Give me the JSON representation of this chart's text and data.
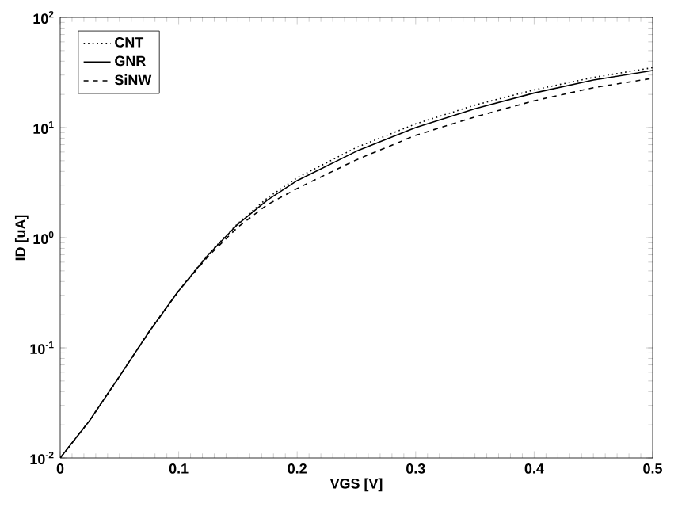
{
  "chart_data": {
    "type": "line",
    "xlabel": "VGS [V]",
    "ylabel": "ID [uA]",
    "log": "y",
    "legend": "top left",
    "grid": false,
    "xlim": [
      0,
      0.5
    ],
    "xticks": [
      0,
      0.1,
      0.2,
      0.3,
      0.4,
      0.5
    ],
    "ylim": [
      0.01,
      100
    ],
    "yticks": [
      {
        "value": 0.01,
        "label": "10$^{-2}$"
      },
      {
        "value": 0.1,
        "label": "10$^{-1}$"
      },
      {
        "value": 1,
        "label": "10$^{0}$"
      },
      {
        "value": 10,
        "label": "10$^{1}$"
      },
      {
        "value": 100,
        "label": "10$^{2}$"
      }
    ],
    "x": [
      0,
      0.025,
      0.05,
      0.075,
      0.1,
      0.125,
      0.15,
      0.175,
      0.2,
      0.25,
      0.3,
      0.35,
      0.4,
      0.45,
      0.5
    ],
    "series": [
      {
        "name": "CNT",
        "color": "#000000",
        "line_style": "dotted",
        "values": [
          0.01,
          0.022,
          0.055,
          0.14,
          0.33,
          0.71,
          1.35,
          2.3,
          3.5,
          6.6,
          10.8,
          16,
          22,
          28.5,
          35
        ]
      },
      {
        "name": "GNR",
        "color": "#000000",
        "line_style": "solid",
        "values": [
          0.01,
          0.022,
          0.055,
          0.14,
          0.33,
          0.7,
          1.33,
          2.2,
          3.3,
          6.1,
          10,
          14.8,
          20.6,
          27,
          33
        ]
      },
      {
        "name": "SiNW",
        "color": "#000000",
        "line_style": "dashed",
        "values": [
          0.01,
          0.022,
          0.055,
          0.14,
          0.33,
          0.68,
          1.25,
          2,
          2.8,
          5.1,
          8.5,
          12.5,
          17.5,
          23,
          28
        ]
      }
    ]
  }
}
